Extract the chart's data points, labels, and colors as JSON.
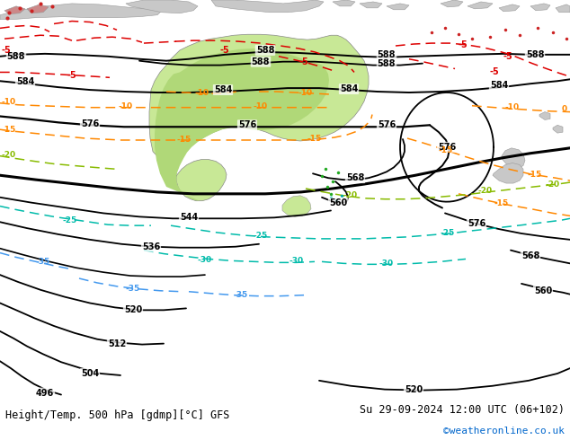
{
  "title_left": "Height/Temp. 500 hPa [gdmp][°C] GFS",
  "title_right": "Su 29-09-2024 12:00 UTC (06+102)",
  "title_right2": "©weatheronline.co.uk",
  "title_right2_color": "#0066cc",
  "bg_ocean": "#d0d8e0",
  "bg_land": "#c8c8c8",
  "aus_green": "#c8e896",
  "aus_green2": "#b0d878",
  "footer_bg": "#ffffff",
  "fig_width": 6.34,
  "fig_height": 4.9,
  "dpi": 100
}
